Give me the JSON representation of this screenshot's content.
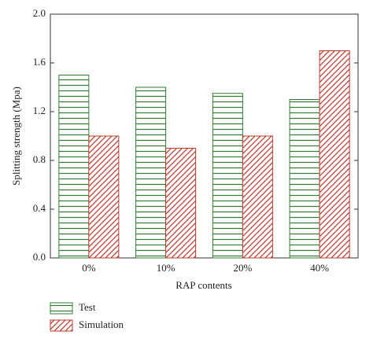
{
  "chart_data": {
    "type": "bar",
    "x_label": "RAP contents",
    "y_label": "Splitting strength (Mpa)",
    "categories": [
      "0%",
      "10%",
      "20%",
      "40%"
    ],
    "series": [
      {
        "name": "Test",
        "color": "#2e7d32",
        "hatch": "horizontal",
        "values": [
          1.5,
          1.4,
          1.35,
          1.3
        ]
      },
      {
        "name": "Simulation",
        "color": "#c0392b",
        "hatch": "diagonal",
        "values": [
          1.0,
          0.9,
          1.0,
          1.7
        ]
      }
    ],
    "ylim": [
      0,
      2
    ],
    "yticks": [
      {
        "value": 0,
        "label": "0.0"
      },
      0.4,
      0.8,
      1.2,
      1.6,
      {
        "value": 2,
        "label": "2.0"
      }
    ]
  }
}
